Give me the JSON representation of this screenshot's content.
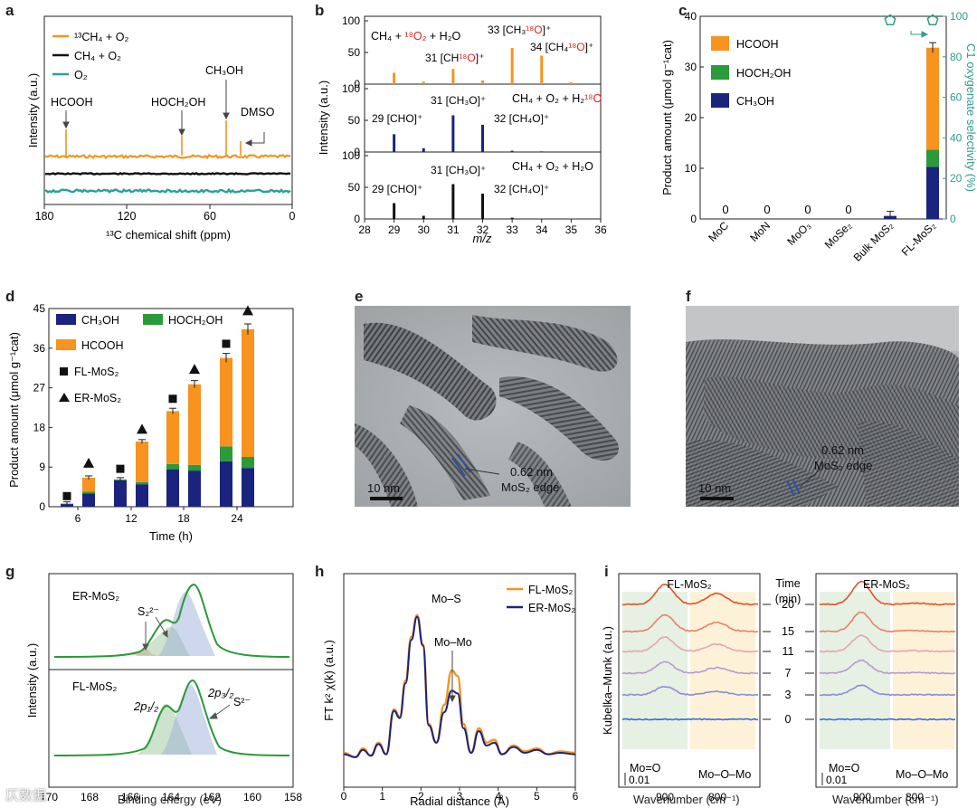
{
  "colors": {
    "orange": "#f7931e",
    "green": "#2a9a3a",
    "navy": "#1a237e",
    "teal": "#2aa198",
    "black": "#111111",
    "red": "#e02020",
    "greenSel": "#2f9c8c"
  },
  "panel_a": {
    "label": "a",
    "legend": [
      "¹³CH₄ + O₂",
      "CH₄ + O₂",
      "O₂"
    ],
    "annotations": [
      "HCOOH",
      "HOCH₂OH",
      "CH₃OH",
      "DMSO"
    ],
    "xlabel": "¹³C chemical shift (ppm)",
    "ylabel": "Intensity (a.u.)",
    "xticks": [
      "180",
      "120",
      "60",
      "0"
    ]
  },
  "panel_b": {
    "label": "b",
    "ylabel": "Intensity (a.u.)",
    "xlabel": "m/z",
    "xticks": [
      "28",
      "29",
      "30",
      "31",
      "32",
      "33",
      "34",
      "35",
      "36"
    ],
    "yticks": [
      "0",
      "50",
      "100"
    ],
    "sub": [
      {
        "title_parts": [
          "CH₄ + ",
          "¹⁸O₂",
          " + H₂O"
        ],
        "labels": [
          "31 [CH",
          "¹⁸O",
          "]⁺",
          "33 [CH₃",
          "¹⁸O",
          "]⁺",
          "34 [CH₄",
          "¹⁸O",
          "]⁺"
        ]
      },
      {
        "title_parts": [
          "CH₄ + O₂ + H₂",
          "¹⁸O"
        ],
        "labels": [
          "29 [CHO]⁺",
          "31 [CH₃O]⁺",
          "32 [CH₄O]⁺"
        ]
      },
      {
        "title_parts": [
          "CH₄ + O₂ + H₂O"
        ],
        "labels": [
          "29 [CHO]⁺",
          "31 [CH₃O]⁺",
          "32 [CH₄O]⁺"
        ]
      }
    ]
  },
  "panel_c": {
    "label": "c",
    "ylabel": "Product amount (μmol g⁻¹cat)",
    "ylabel_right": "C1 oxygenate selectivity (%)",
    "legend": [
      "HCOOH",
      "HOCH₂OH",
      "CH₃OH"
    ],
    "zero_label": "0",
    "yticks": [
      "0",
      "10",
      "20",
      "30",
      "40"
    ],
    "yticks_right": [
      "0",
      "20",
      "40",
      "60",
      "80",
      "100"
    ]
  },
  "panel_d": {
    "label": "d",
    "ylabel": "Product amount (μmol g⁻¹cat)",
    "xlabel": "Time (h)",
    "legend": [
      "CH₃OH",
      "HOCH₂OH",
      "HCOOH",
      "FL-MoS₂",
      "ER-MoS₂"
    ],
    "yticks": [
      "0",
      "9",
      "18",
      "27",
      "36",
      "45"
    ]
  },
  "panel_e": {
    "label": "e",
    "scale": "10 nm",
    "ann1": "0.62 nm",
    "ann2": "MoS₂ edge"
  },
  "panel_f": {
    "label": "f",
    "scale": "10 nm",
    "ann1": "0.62 nm",
    "ann2": "MoS₂ edge"
  },
  "panel_g": {
    "label": "g",
    "ylabel": "Intensity (a.u.)",
    "xlabel": "Binding energy (eV)",
    "top_label": "ER-MoS₂",
    "bottom_label": "FL-MoS₂",
    "ann": [
      "S₂²⁻",
      "2p₁/₂",
      "2p₃/₂",
      "S²⁻"
    ],
    "xticks": [
      "170",
      "168",
      "166",
      "164",
      "162",
      "160",
      "158"
    ]
  },
  "panel_h": {
    "label": "h",
    "ylabel": "FT k² χ(k) (a.u.)",
    "xlabel": "Radial distance (Å)",
    "legend": [
      "FL-MoS₂",
      "ER-MoS₂"
    ],
    "ann": [
      "Mo–S",
      "Mo–Mo"
    ],
    "xticks": [
      "0",
      "1",
      "2",
      "3",
      "4",
      "5",
      "6"
    ]
  },
  "panel_i": {
    "label": "i",
    "ylabel": "Kubelka–Munk (a.u.)",
    "xlabel": "Wavenumber (cm⁻¹)",
    "left_title": "FL-MoS₂",
    "right_title": "ER-MoS₂",
    "time_header": [
      "Time",
      "(min)"
    ],
    "times": [
      "20",
      "15",
      "11",
      "7",
      "3",
      "0"
    ],
    "ann_moo": "Mo=O",
    "ann_momo": "Mo–O–Mo",
    "scale": "0.01",
    "xticks": [
      "900",
      "800"
    ]
  },
  "watermark": "仄数据",
  "chart_data": [
    {
      "type": "bar",
      "id": "c",
      "categories": [
        "MoC",
        "MoN",
        "MoO₃",
        "MoSe₂",
        "Bulk MoS₂",
        "FL-MoS₂"
      ],
      "series": [
        {
          "name": "CH₃OH",
          "values": [
            0,
            0,
            0,
            0,
            0.6,
            10.3
          ]
        },
        {
          "name": "HOCH₂OH",
          "values": [
            0,
            0,
            0,
            0,
            0,
            3.4
          ]
        },
        {
          "name": "HCOOH",
          "values": [
            0,
            0,
            0,
            0,
            0,
            20.1
          ]
        }
      ],
      "error_total": [
        0,
        0,
        0,
        0,
        0.9,
        1.0
      ],
      "selectivity": [
        null,
        null,
        null,
        null,
        98,
        98
      ],
      "ylim": [
        0,
        40
      ],
      "ylim_right": [
        0,
        100
      ]
    },
    {
      "type": "bar",
      "id": "d",
      "categories": [
        "6",
        "12",
        "18",
        "24"
      ],
      "series_FL": {
        "CH₃OH": [
          0.6,
          6.0,
          8.5,
          10.3
        ],
        "HOCH₂OH": [
          0.1,
          0.2,
          1.2,
          3.4
        ],
        "HCOOH": [
          0.0,
          0.0,
          12.0,
          20.1
        ]
      },
      "series_ER": {
        "CH₃OH": [
          3.0,
          5.1,
          8.2,
          8.8
        ],
        "HOCH₂OH": [
          0.4,
          0.5,
          1.3,
          2.5
        ],
        "HCOOH": [
          3.2,
          9.2,
          18.3,
          29.0
        ]
      },
      "marker_FL": [
        2.4,
        8.6,
        24.5,
        37.0
      ],
      "marker_ER": [
        9.9,
        17.6,
        31.2,
        44.5
      ],
      "ylim": [
        0,
        45
      ]
    },
    {
      "type": "bar",
      "id": "b",
      "x_ticks": [
        28,
        29,
        30,
        31,
        32,
        33,
        34,
        35,
        36
      ],
      "sub": [
        {
          "color": "orange",
          "peaks": [
            [
              29,
              18
            ],
            [
              30,
              4
            ],
            [
              31,
              24
            ],
            [
              32,
              6
            ],
            [
              33,
              57
            ],
            [
              34,
              45
            ],
            [
              35,
              3
            ]
          ]
        },
        {
          "color": "navy",
          "peaks": [
            [
              29,
              28
            ],
            [
              30,
              6
            ],
            [
              31,
              58
            ],
            [
              32,
              43
            ],
            [
              33,
              2
            ],
            [
              34,
              1
            ]
          ]
        },
        {
          "color": "black",
          "peaks": [
            [
              29,
              25
            ],
            [
              30,
              5
            ],
            [
              31,
              55
            ],
            [
              32,
              40
            ],
            [
              33,
              2
            ]
          ]
        }
      ],
      "ylim": [
        0,
        100
      ]
    },
    {
      "type": "line",
      "id": "h",
      "series": [
        {
          "name": "FL-MoS₂",
          "x": [
            0,
            0.3,
            0.5,
            0.7,
            0.9,
            1.1,
            1.3,
            1.45,
            1.6,
            1.75,
            1.9,
            2.05,
            2.2,
            2.4,
            2.6,
            2.8,
            2.95,
            3.1,
            3.3,
            3.5,
            3.7,
            3.9,
            4.1,
            4.4,
            4.7,
            5.0,
            5.3,
            5.6,
            6.0
          ],
          "y": [
            0.05,
            0.02,
            0.08,
            0.03,
            0.12,
            0.04,
            0.35,
            0.3,
            0.55,
            0.85,
            1.0,
            0.8,
            0.25,
            0.12,
            0.38,
            0.62,
            0.58,
            0.25,
            0.05,
            0.22,
            0.12,
            0.14,
            0.04,
            0.1,
            0.06,
            0.08,
            0.04,
            0.06,
            0.05
          ]
        },
        {
          "name": "ER-MoS₂",
          "x": [
            0,
            0.3,
            0.5,
            0.7,
            0.9,
            1.1,
            1.3,
            1.45,
            1.6,
            1.75,
            1.9,
            2.05,
            2.2,
            2.4,
            2.6,
            2.8,
            2.95,
            3.1,
            3.3,
            3.5,
            3.7,
            3.9,
            4.1,
            4.4,
            4.7,
            5.0,
            5.3,
            5.6,
            6.0
          ],
          "y": [
            0.04,
            0.02,
            0.07,
            0.03,
            0.11,
            0.04,
            0.34,
            0.29,
            0.53,
            0.83,
            0.99,
            0.79,
            0.24,
            0.12,
            0.33,
            0.48,
            0.46,
            0.22,
            0.05,
            0.2,
            0.1,
            0.12,
            0.04,
            0.09,
            0.05,
            0.07,
            0.04,
            0.05,
            0.04
          ]
        }
      ],
      "xlim": [
        0,
        6
      ]
    }
  ]
}
